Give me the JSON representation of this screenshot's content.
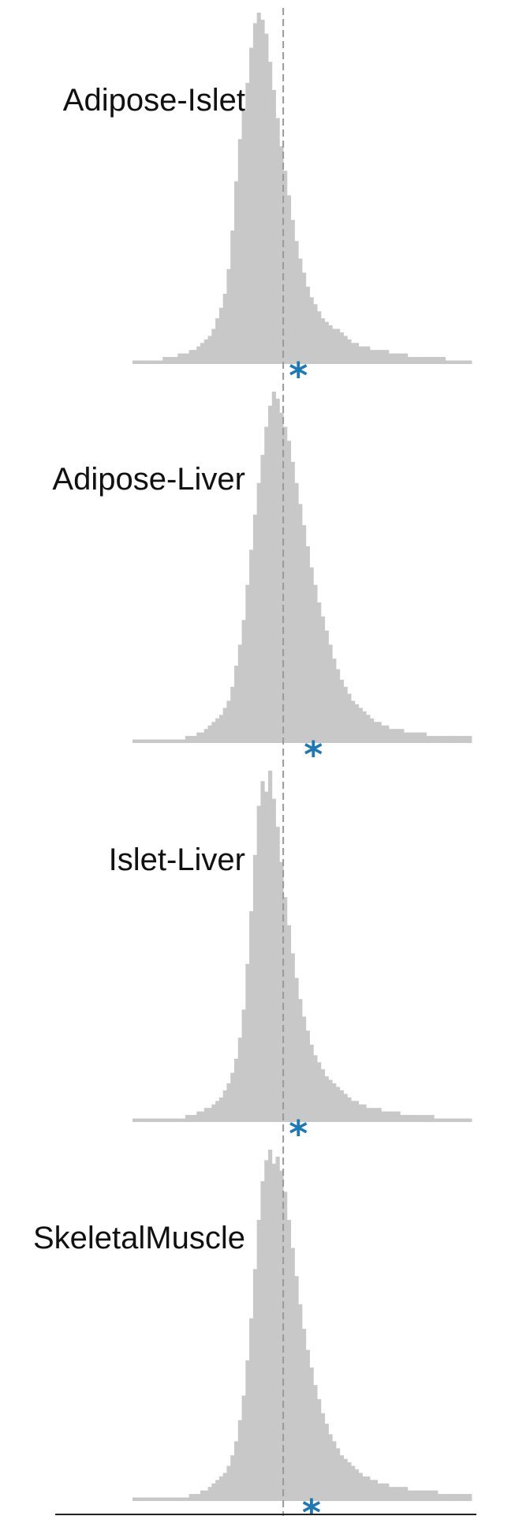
{
  "chart_data": {
    "type": "histogram",
    "layout": "stacked panels",
    "style": {
      "bar_color": "#c8c8c8",
      "marker_color": "#1f77b4",
      "reference_line_color": "#9a9a9a",
      "reference_line_style": "dashed"
    },
    "reference_line": {
      "x": 0
    },
    "xlim": [
      -0.8,
      1.0
    ],
    "bin_width": 0.02,
    "panels": [
      {
        "label": "Adipose-Islet",
        "marker_x": 0.08,
        "counts": [
          1,
          1,
          1,
          1,
          1,
          1,
          1,
          1,
          2,
          2,
          2,
          2,
          3,
          3,
          3,
          4,
          4,
          5,
          6,
          7,
          8,
          10,
          13,
          16,
          20,
          27,
          38,
          52,
          64,
          72,
          80,
          90,
          97,
          100,
          98,
          94,
          86,
          78,
          70,
          62,
          55,
          48,
          41,
          35,
          30,
          26,
          22,
          19,
          17,
          15,
          13,
          12,
          11,
          10,
          10,
          9,
          8,
          7,
          6,
          6,
          5,
          5,
          5,
          4,
          4,
          4,
          4,
          4,
          3,
          3,
          3,
          3,
          3,
          2,
          2,
          2,
          2,
          2,
          2,
          2,
          2,
          2,
          2,
          1,
          1,
          1,
          1,
          1,
          1,
          1
        ]
      },
      {
        "label": "Adipose-Liver",
        "marker_x": 0.16,
        "counts": [
          1,
          1,
          1,
          1,
          1,
          1,
          1,
          1,
          1,
          1,
          1,
          1,
          1,
          1,
          2,
          2,
          2,
          3,
          3,
          4,
          5,
          6,
          7,
          8,
          10,
          12,
          16,
          22,
          28,
          35,
          45,
          55,
          65,
          74,
          82,
          90,
          96,
          100,
          98,
          94,
          90,
          86,
          80,
          74,
          68,
          62,
          56,
          50,
          45,
          40,
          36,
          32,
          28,
          24,
          21,
          18,
          16,
          14,
          12,
          11,
          10,
          9,
          8,
          7,
          6,
          6,
          5,
          5,
          4,
          4,
          4,
          4,
          3,
          3,
          3,
          3,
          3,
          3,
          2,
          2,
          2,
          2,
          2,
          2,
          2,
          2,
          2,
          2,
          2,
          2
        ]
      },
      {
        "label": "Islet-Liver",
        "marker_x": 0.08,
        "counts": [
          1,
          1,
          1,
          1,
          1,
          1,
          1,
          1,
          1,
          1,
          1,
          1,
          1,
          1,
          2,
          2,
          2,
          3,
          3,
          4,
          4,
          5,
          6,
          7,
          9,
          11,
          14,
          18,
          24,
          32,
          45,
          60,
          76,
          90,
          97,
          94,
          100,
          92,
          84,
          74,
          64,
          56,
          48,
          41,
          35,
          30,
          26,
          22,
          19,
          17,
          15,
          13,
          12,
          11,
          10,
          9,
          8,
          7,
          6,
          6,
          5,
          5,
          4,
          4,
          4,
          4,
          3,
          3,
          3,
          3,
          3,
          2,
          2,
          2,
          2,
          2,
          2,
          2,
          2,
          2,
          1,
          1,
          1,
          1,
          1,
          1,
          1,
          1,
          1,
          1
        ]
      },
      {
        "label": "SkeletalMuscle",
        "marker_x": 0.15,
        "counts": [
          1,
          1,
          1,
          1,
          1,
          1,
          1,
          1,
          1,
          1,
          1,
          1,
          1,
          1,
          1,
          2,
          2,
          2,
          3,
          3,
          4,
          5,
          6,
          7,
          8,
          10,
          13,
          17,
          23,
          30,
          40,
          52,
          66,
          80,
          91,
          97,
          100,
          96,
          98,
          94,
          88,
          80,
          72,
          64,
          56,
          49,
          43,
          38,
          33,
          29,
          25,
          22,
          19,
          17,
          15,
          13,
          12,
          11,
          10,
          9,
          8,
          7,
          7,
          6,
          6,
          5,
          5,
          5,
          4,
          4,
          4,
          4,
          4,
          3,
          3,
          3,
          3,
          3,
          3,
          3,
          3,
          2,
          2,
          2,
          2,
          2,
          2,
          2,
          2,
          2
        ]
      }
    ]
  }
}
